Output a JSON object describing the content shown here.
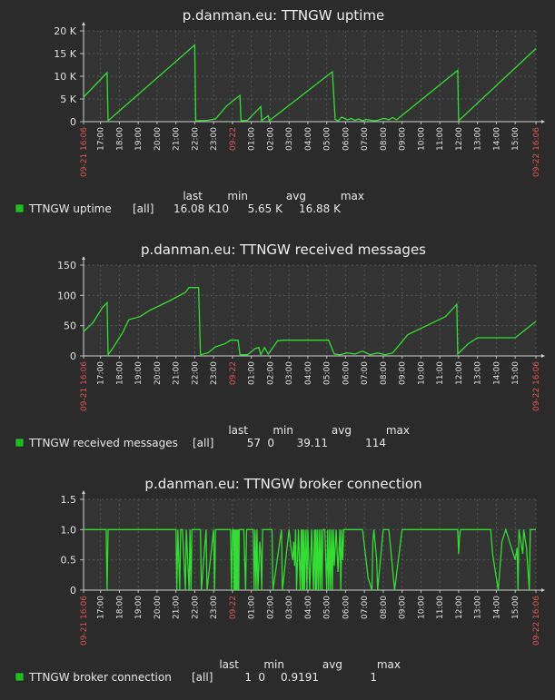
{
  "chart_data": [
    {
      "type": "line",
      "title": "p.danman.eu: TTNGW uptime",
      "yticks": [
        {
          "v": 0,
          "label": "0"
        },
        {
          "v": 5000,
          "label": "5 K"
        },
        {
          "v": 10000,
          "label": "10 K"
        },
        {
          "v": 15000,
          "label": "15 K"
        },
        {
          "v": 20000,
          "label": "20 K"
        }
      ],
      "ylim": [
        0,
        20000
      ],
      "xlim": [
        0,
        24
      ],
      "xticks": [
        {
          "v": 0,
          "label": "09-21 16:06",
          "red": true
        },
        {
          "v": 0.9,
          "label": "17:00"
        },
        {
          "v": 1.9,
          "label": "18:00"
        },
        {
          "v": 2.9,
          "label": "19:00"
        },
        {
          "v": 3.9,
          "label": "20:00"
        },
        {
          "v": 4.9,
          "label": "21:00"
        },
        {
          "v": 5.9,
          "label": "22:00"
        },
        {
          "v": 6.9,
          "label": "23:00"
        },
        {
          "v": 7.9,
          "label": "09-22",
          "red": true
        },
        {
          "v": 8.9,
          "label": "01:00"
        },
        {
          "v": 9.9,
          "label": "02:00"
        },
        {
          "v": 10.9,
          "label": "03:00"
        },
        {
          "v": 11.9,
          "label": "04:00"
        },
        {
          "v": 12.9,
          "label": "05:00"
        },
        {
          "v": 13.9,
          "label": "06:00"
        },
        {
          "v": 14.9,
          "label": "07:00"
        },
        {
          "v": 15.9,
          "label": "08:00"
        },
        {
          "v": 16.9,
          "label": "09:00"
        },
        {
          "v": 17.9,
          "label": "10:00"
        },
        {
          "v": 18.9,
          "label": "11:00"
        },
        {
          "v": 19.9,
          "label": "12:00"
        },
        {
          "v": 20.9,
          "label": "13:00"
        },
        {
          "v": 21.9,
          "label": "14:00"
        },
        {
          "v": 22.9,
          "label": "15:00"
        },
        {
          "v": 24,
          "label": "09-22 16:06",
          "red": true
        }
      ],
      "grid": true,
      "series": [
        {
          "name": "TTNGW uptime",
          "color": "#33dd33",
          "x": [
            0,
            1.25,
            1.3,
            5.9,
            5.95,
            6.6,
            7.0,
            7.6,
            8.3,
            8.35,
            8.7,
            9.4,
            9.45,
            9.6,
            9.8,
            9.85,
            13.2,
            13.35,
            13.5,
            13.7,
            14.0,
            14.2,
            14.4,
            14.6,
            14.8,
            15.0,
            15.4,
            15.6,
            15.8,
            16.0,
            16.2,
            16.4,
            16.6,
            19.85,
            19.9,
            24
          ],
          "y": [
            5400,
            10800,
            200,
            16900,
            200,
            300,
            600,
            3500,
            5800,
            200,
            300,
            3300,
            200,
            700,
            1300,
            200,
            11000,
            500,
            200,
            1000,
            400,
            700,
            300,
            600,
            200,
            500,
            200,
            300,
            600,
            700,
            400,
            900,
            400,
            11300,
            200,
            16100
          ]
        }
      ],
      "legend": {
        "headers": [
          "last",
          "min",
          "avg",
          "max"
        ],
        "rows": [
          {
            "name": "TTNGW uptime",
            "color": "#22bb22",
            "group": "[all]",
            "values": [
              "16.08 K",
              "10",
              "5.65 K",
              "16.88 K"
            ]
          }
        ]
      }
    },
    {
      "type": "line",
      "title": "p.danman.eu: TTNGW received messages",
      "yticks": [
        {
          "v": 0,
          "label": "0"
        },
        {
          "v": 50,
          "label": "50"
        },
        {
          "v": 100,
          "label": "100"
        },
        {
          "v": 150,
          "label": "150"
        }
      ],
      "ylim": [
        0,
        150
      ],
      "xlim": [
        0,
        24
      ],
      "xticks": [
        {
          "v": 0,
          "label": "09-21 16:06",
          "red": true
        },
        {
          "v": 0.9,
          "label": "17:00"
        },
        {
          "v": 1.9,
          "label": "18:00"
        },
        {
          "v": 2.9,
          "label": "19:00"
        },
        {
          "v": 3.9,
          "label": "20:00"
        },
        {
          "v": 4.9,
          "label": "21:00"
        },
        {
          "v": 5.9,
          "label": "22:00"
        },
        {
          "v": 6.9,
          "label": "23:00"
        },
        {
          "v": 7.9,
          "label": "09-22",
          "red": true
        },
        {
          "v": 8.9,
          "label": "01:00"
        },
        {
          "v": 9.9,
          "label": "02:00"
        },
        {
          "v": 10.9,
          "label": "03:00"
        },
        {
          "v": 11.9,
          "label": "04:00"
        },
        {
          "v": 12.9,
          "label": "05:00"
        },
        {
          "v": 13.9,
          "label": "06:00"
        },
        {
          "v": 14.9,
          "label": "07:00"
        },
        {
          "v": 15.9,
          "label": "08:00"
        },
        {
          "v": 16.9,
          "label": "09:00"
        },
        {
          "v": 17.9,
          "label": "10:00"
        },
        {
          "v": 18.9,
          "label": "11:00"
        },
        {
          "v": 19.9,
          "label": "12:00"
        },
        {
          "v": 20.9,
          "label": "13:00"
        },
        {
          "v": 21.9,
          "label": "14:00"
        },
        {
          "v": 22.9,
          "label": "15:00"
        },
        {
          "v": 24,
          "label": "09-22 16:06",
          "red": true
        }
      ],
      "grid": true,
      "series": [
        {
          "name": "TTNGW received messages",
          "color": "#33dd33",
          "x": [
            0,
            0.5,
            1.0,
            1.25,
            1.3,
            1.6,
            2.1,
            2.4,
            3.0,
            3.5,
            4.5,
            5.4,
            5.6,
            6.1,
            6.2,
            6.6,
            7.0,
            7.5,
            7.8,
            8.2,
            8.3,
            8.7,
            9.1,
            9.3,
            9.4,
            9.6,
            9.8,
            10.3,
            10.6,
            13.0,
            13.3,
            13.6,
            14.0,
            14.4,
            14.8,
            15.2,
            15.6,
            16.0,
            16.4,
            17.2,
            18.2,
            19.2,
            19.8,
            19.85,
            20.4,
            20.9,
            22.9,
            24
          ],
          "y": [
            40,
            55,
            80,
            88,
            2,
            15,
            40,
            60,
            65,
            75,
            90,
            105,
            113,
            113,
            2,
            5,
            15,
            20,
            26,
            26,
            2,
            2,
            12,
            14,
            2,
            14,
            3,
            25,
            26,
            26,
            3,
            2,
            5,
            3,
            8,
            2,
            5,
            2,
            5,
            35,
            50,
            65,
            85,
            3,
            20,
            30,
            30,
            57
          ]
        }
      ],
      "legend": {
        "headers": [
          "last",
          "min",
          "avg",
          "max"
        ],
        "rows": [
          {
            "name": "TTNGW received messages",
            "color": "#22bb22",
            "group": "[all]",
            "values": [
              "57",
              "0",
              "39.11",
              "114"
            ]
          }
        ]
      }
    },
    {
      "type": "line",
      "title": "p.danman.eu: TTNGW broker connection",
      "yticks": [
        {
          "v": 0,
          "label": "0"
        },
        {
          "v": 0.5,
          "label": "0.5"
        },
        {
          "v": 1.0,
          "label": "1.0"
        },
        {
          "v": 1.5,
          "label": "1.5"
        }
      ],
      "ylim": [
        0,
        1.5
      ],
      "xlim": [
        0,
        24
      ],
      "xticks": [
        {
          "v": 0,
          "label": "09-21 16:06",
          "red": true
        },
        {
          "v": 0.9,
          "label": "17:00"
        },
        {
          "v": 1.9,
          "label": "18:00"
        },
        {
          "v": 2.9,
          "label": "19:00"
        },
        {
          "v": 3.9,
          "label": "20:00"
        },
        {
          "v": 4.9,
          "label": "21:00"
        },
        {
          "v": 5.9,
          "label": "22:00"
        },
        {
          "v": 6.9,
          "label": "23:00"
        },
        {
          "v": 7.9,
          "label": "09-22",
          "red": true
        },
        {
          "v": 8.9,
          "label": "01:00"
        },
        {
          "v": 9.9,
          "label": "02:00"
        },
        {
          "v": 10.9,
          "label": "03:00"
        },
        {
          "v": 11.9,
          "label": "04:00"
        },
        {
          "v": 12.9,
          "label": "05:00"
        },
        {
          "v": 13.9,
          "label": "06:00"
        },
        {
          "v": 14.9,
          "label": "07:00"
        },
        {
          "v": 15.9,
          "label": "08:00"
        },
        {
          "v": 16.9,
          "label": "09:00"
        },
        {
          "v": 17.9,
          "label": "10:00"
        },
        {
          "v": 18.9,
          "label": "11:00"
        },
        {
          "v": 19.9,
          "label": "12:00"
        },
        {
          "v": 20.9,
          "label": "13:00"
        },
        {
          "v": 21.9,
          "label": "14:00"
        },
        {
          "v": 22.9,
          "label": "15:00"
        },
        {
          "v": 24,
          "label": "09-22 16:06",
          "red": true
        }
      ],
      "grid": true,
      "series": [
        {
          "name": "TTNGW broker connection",
          "color": "#33dd33",
          "x": [
            0,
            1.2,
            1.25,
            1.3,
            1.35,
            4.9,
            4.95,
            5.0,
            5.1,
            5.15,
            5.2,
            5.25,
            5.4,
            5.45,
            5.6,
            5.65,
            5.7,
            5.75,
            6.2,
            6.25,
            6.5,
            6.55,
            6.9,
            6.95,
            7.0,
            7.05,
            7.8,
            7.85,
            7.9,
            7.95,
            7.98,
            8.0,
            8.02,
            8.05,
            8.08,
            8.1,
            8.12,
            8.15,
            8.18,
            8.2,
            8.23,
            8.26,
            8.3,
            8.35,
            8.5,
            8.6,
            8.65,
            8.7,
            9.0,
            9.05,
            9.1,
            9.15,
            9.2,
            9.25,
            9.3,
            9.35,
            9.4,
            9.45,
            9.5,
            10.0,
            10.05,
            10.5,
            10.55,
            10.9,
            11.0,
            11.1,
            11.15,
            11.2,
            11.25,
            11.3,
            11.4,
            11.5,
            11.55,
            11.6,
            11.62,
            11.65,
            11.7,
            11.72,
            11.8,
            11.85,
            11.9,
            12.0,
            12.1,
            12.2,
            12.25,
            12.3,
            12.32,
            12.35,
            12.4,
            12.45,
            12.5,
            12.55,
            12.6,
            12.65,
            12.7,
            12.8,
            12.9,
            12.95,
            13.0,
            13.05,
            13.1,
            13.15,
            13.2,
            13.25,
            13.3,
            13.4,
            13.5,
            13.6,
            13.65,
            13.7,
            13.75,
            13.8,
            14.8,
            15.1,
            15.3,
            15.35,
            15.4,
            15.55,
            15.6,
            15.9,
            16.2,
            16.5,
            16.9,
            17.2,
            17.5,
            17.9,
            18.9,
            19.5,
            19.85,
            19.9,
            19.95,
            20.0,
            21.5,
            21.6,
            21.7,
            22.0,
            22.2,
            22.4,
            22.9,
            23.0,
            23.05,
            23.1,
            23.3,
            23.35,
            23.5,
            23.65,
            23.7,
            24
          ],
          "y": [
            1,
            1,
            0,
            1,
            1,
            1,
            0,
            1,
            0,
            1,
            1,
            1,
            0,
            1,
            0,
            1,
            0,
            1,
            1,
            0,
            1,
            0,
            1,
            0,
            1,
            1,
            1,
            0,
            1,
            1,
            0,
            1,
            0,
            1,
            0,
            1,
            0,
            1,
            0,
            1,
            0,
            1,
            1,
            1,
            1,
            0,
            1,
            1,
            1,
            0,
            1,
            0,
            1,
            0,
            0.4,
            0.8,
            0.6,
            0,
            1,
            1,
            0,
            1,
            0,
            1,
            0.7,
            0.5,
            0.8,
            0.4,
            1,
            0,
            1,
            0,
            1,
            0,
            1,
            0,
            1,
            0,
            1,
            0,
            1,
            0,
            1,
            0,
            1,
            0,
            1,
            0,
            1,
            0,
            1,
            0,
            1,
            0,
            1,
            1,
            0,
            1,
            0,
            1,
            0,
            1,
            0,
            1,
            0.4,
            1,
            0.3,
            1,
            0,
            1,
            0.5,
            1,
            1,
            0.2,
            0,
            0.8,
            1,
            0.5,
            0,
            1,
            1,
            0,
            1,
            1,
            1,
            1,
            1,
            1,
            1,
            0.6,
            0.9,
            1,
            1,
            1,
            0.6,
            0,
            0.8,
            1,
            0.5,
            0.7,
            0,
            1,
            0.6,
            1,
            0.7,
            0,
            1,
            1
          ]
        }
      ],
      "legend": {
        "headers": [
          "last",
          "min",
          "avg",
          "max"
        ],
        "rows": [
          {
            "name": "TTNGW broker connection",
            "color": "#22bb22",
            "group": "[all]",
            "values": [
              "1",
              "0",
              "0.9191",
              "1"
            ]
          }
        ]
      }
    }
  ]
}
